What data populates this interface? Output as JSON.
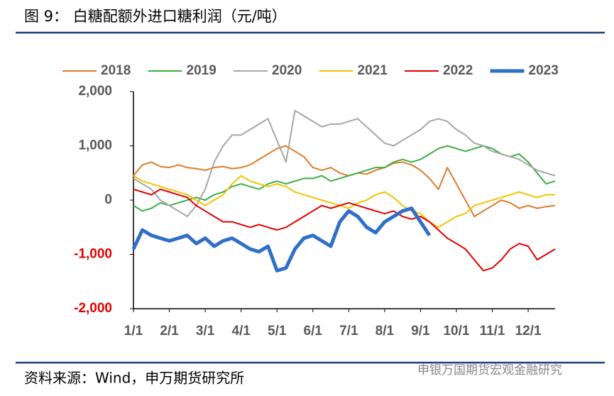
{
  "chart_data": {
    "type": "line",
    "title": "图 9：  白糖配额外进口糖利润（元/吨）",
    "source": "资料来源：Wind，申万期货研究所",
    "watermark": "申银万国期货宏观金融研究",
    "categories": [
      "1/1",
      null,
      null,
      null,
      "2/1",
      null,
      null,
      null,
      "3/1",
      null,
      null,
      null,
      "4/1",
      null,
      null,
      null,
      "5/1",
      null,
      null,
      null,
      "6/1",
      null,
      null,
      null,
      "7/1",
      null,
      null,
      null,
      "8/1",
      null,
      null,
      null,
      "9/1",
      null,
      null,
      null,
      "10/1",
      null,
      null,
      null,
      "11/1",
      null,
      null,
      null,
      "12/1",
      null,
      null,
      null
    ],
    "ylim": [
      -2000,
      2000
    ],
    "yticks": [
      {
        "value": 2000,
        "label": "2,000"
      },
      {
        "value": 1000,
        "label": "1,000"
      },
      0,
      {
        "value": -1000,
        "label": "-1,000"
      },
      {
        "value": -2000,
        "label": "-2,000"
      }
    ],
    "tick_label_color": "#595959",
    "negative_tick_label_color": "#e00000",
    "legend": "top",
    "series": [
      {
        "name": "2018",
        "color": "#e07b28",
        "width": 2,
        "values": [
          450,
          650,
          700,
          620,
          600,
          650,
          600,
          580,
          550,
          600,
          620,
          580,
          600,
          650,
          750,
          850,
          950,
          1000,
          900,
          800,
          600,
          550,
          600,
          500,
          450,
          500,
          480,
          550,
          600,
          680,
          700,
          650,
          550,
          400,
          200,
          600,
          300,
          0,
          -300,
          -200,
          -100,
          0,
          -50,
          -150,
          -100,
          -150,
          -120,
          -100
        ]
      },
      {
        "name": "2019",
        "color": "#3cae46",
        "width": 2,
        "values": [
          -100,
          -200,
          -150,
          -50,
          -100,
          -50,
          0,
          50,
          0,
          100,
          150,
          250,
          300,
          250,
          200,
          300,
          350,
          300,
          350,
          400,
          400,
          450,
          350,
          400,
          450,
          500,
          550,
          600,
          600,
          700,
          750,
          700,
          750,
          850,
          950,
          1000,
          950,
          900,
          950,
          1000,
          950,
          850,
          800,
          850,
          700,
          500,
          300,
          350
        ]
      },
      {
        "name": "2020",
        "color": "#a6a6a6",
        "width": 2,
        "values": [
          400,
          300,
          200,
          0,
          -100,
          -200,
          -300,
          -100,
          200,
          700,
          1000,
          1200,
          1200,
          1300,
          1400,
          1500,
          1100,
          700,
          1650,
          1550,
          1450,
          1350,
          1400,
          1400,
          1450,
          1500,
          1350,
          1200,
          1050,
          1000,
          1100,
          1200,
          1300,
          1450,
          1500,
          1450,
          1300,
          1200,
          1050,
          1000,
          900,
          850,
          800,
          750,
          650,
          550,
          500,
          450
        ]
      },
      {
        "name": "2021",
        "color": "#f2c400",
        "width": 2,
        "values": [
          450,
          350,
          300,
          250,
          200,
          150,
          100,
          0,
          -100,
          0,
          100,
          300,
          450,
          350,
          300,
          250,
          300,
          250,
          150,
          100,
          50,
          0,
          -50,
          -100,
          -150,
          -50,
          0,
          100,
          150,
          50,
          -100,
          -200,
          -250,
          -400,
          -500,
          -400,
          -300,
          -250,
          -100,
          -50,
          0,
          50,
          100,
          150,
          100,
          50,
          100,
          100
        ]
      },
      {
        "name": "2022",
        "color": "#e00000",
        "width": 2,
        "values": [
          200,
          150,
          100,
          200,
          150,
          100,
          50,
          -100,
          -200,
          -300,
          -400,
          -400,
          -450,
          -500,
          -450,
          -500,
          -550,
          -500,
          -400,
          -300,
          -200,
          -100,
          -150,
          -100,
          -50,
          -100,
          -150,
          -200,
          -250,
          -200,
          -300,
          -350,
          -300,
          -400,
          -550,
          -700,
          -800,
          -900,
          -1100,
          -1300,
          -1250,
          -1100,
          -900,
          -800,
          -850,
          -1100,
          -1000,
          -900
        ]
      },
      {
        "name": "2023",
        "color": "#2f6fc8",
        "width": 5,
        "values": [
          -900,
          -550,
          -650,
          -700,
          -750,
          -700,
          -650,
          -800,
          -700,
          -850,
          -750,
          -700,
          -800,
          -900,
          -950,
          -850,
          -1300,
          -1250,
          -900,
          -700,
          -650,
          -750,
          -850,
          -400,
          -200,
          -300,
          -500,
          -600,
          -400,
          -300,
          -200,
          -150,
          -400,
          -650,
          null,
          null,
          null,
          null,
          null,
          null,
          null,
          null,
          null,
          null,
          null,
          null,
          null,
          null
        ]
      }
    ]
  }
}
